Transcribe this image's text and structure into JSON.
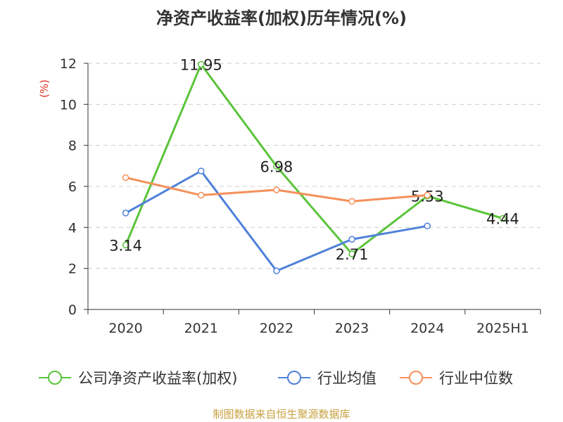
{
  "chart_data": {
    "type": "line",
    "title": "净资产收益率(加权)历年情况(%)",
    "ylabel": "(%)",
    "categories": [
      "2020",
      "2021",
      "2022",
      "2023",
      "2024",
      "2025H1"
    ],
    "yticks": [
      "0",
      "2",
      "4",
      "6",
      "8",
      "10",
      "12"
    ],
    "ylim": [
      0,
      12
    ],
    "grid": true,
    "legend_position": "bottom",
    "series": [
      {
        "name": "公司净资产收益率(加权)",
        "color": "#5ac43a",
        "values": [
          3.14,
          11.95,
          6.98,
          2.71,
          5.53,
          4.44
        ],
        "labels": [
          "3.14",
          "11.95",
          "6.98",
          "2.71",
          "5.53",
          "4.44"
        ]
      },
      {
        "name": "行业均值",
        "color": "#4f81d9",
        "values": [
          4.7,
          6.75,
          1.88,
          3.42,
          4.07,
          null
        ]
      },
      {
        "name": "行业中位数",
        "color": "#f5905a",
        "values": [
          6.43,
          5.57,
          5.83,
          5.27,
          5.57,
          null
        ]
      }
    ],
    "source": "制图数据来自恒生聚源数据库"
  }
}
